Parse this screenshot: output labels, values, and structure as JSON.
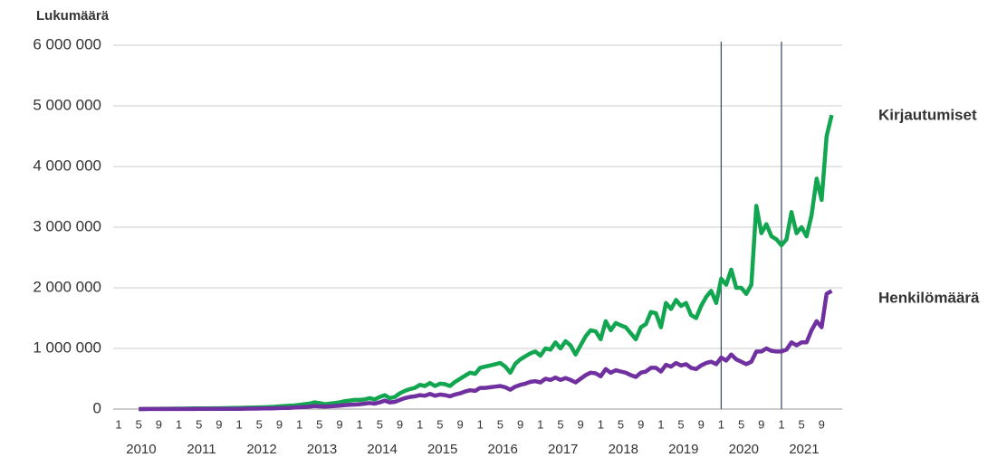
{
  "chart_data": {
    "type": "line",
    "y_axis_title": "Lukumäärä",
    "categories": [
      "1",
      null,
      null,
      null,
      "5",
      null,
      null,
      null,
      "9",
      null,
      null,
      null,
      "1",
      null,
      null,
      null,
      "5",
      null,
      null,
      null,
      "9",
      null,
      null,
      null,
      "1",
      null,
      null,
      null,
      "5",
      null,
      null,
      null,
      "9",
      null,
      null,
      null,
      "1",
      null,
      null,
      null,
      "5",
      null,
      null,
      null,
      "9",
      null,
      null,
      null,
      "1",
      null,
      null,
      null,
      "5",
      null,
      null,
      null,
      "9",
      null,
      null,
      null,
      "1",
      null,
      null,
      null,
      "5",
      null,
      null,
      null,
      "9",
      null,
      null,
      null,
      "1",
      null,
      null,
      null,
      "5",
      null,
      null,
      null,
      "9",
      null,
      null,
      null,
      "1",
      null,
      null,
      null,
      "5",
      null,
      null,
      null,
      "9",
      null,
      null,
      null,
      "1",
      null,
      null,
      null,
      "5",
      null,
      null,
      null,
      "9",
      null,
      null,
      null,
      "1",
      null,
      null,
      null,
      "5",
      null,
      null,
      null,
      "9",
      null,
      null,
      null,
      "1",
      null,
      null,
      null,
      "5",
      null,
      null,
      null,
      "9",
      null,
      null,
      null,
      "1",
      null,
      null,
      null,
      "5",
      null,
      null,
      null,
      "9",
      null,
      null,
      null
    ],
    "years": [
      "2010",
      "2011",
      "2012",
      "2013",
      "2014",
      "2015",
      "2016",
      "2017",
      "2018",
      "2019",
      "2020",
      "2021"
    ],
    "vlines": [
      120,
      132
    ],
    "ylim": [
      0,
      6000000
    ],
    "yticks": [
      0,
      {
        "value": 1000000,
        "label": "1 000 000"
      },
      {
        "value": 2000000,
        "label": "2 000 000"
      },
      {
        "value": 3000000,
        "label": "3 000 000"
      },
      {
        "value": 4000000,
        "label": "4 000 000"
      },
      {
        "value": 5000000,
        "label": "5 000 000"
      },
      {
        "value": 6000000,
        "label": "6 000 000"
      }
    ],
    "grid": true,
    "series": [
      {
        "name": "Kirjautumiset",
        "color": "#12a650",
        "values": [
          null,
          null,
          null,
          null,
          0,
          2000,
          3000,
          4000,
          5000,
          6000,
          6000,
          7000,
          8000,
          8000,
          9000,
          10000,
          10000,
          11000,
          12000,
          13000,
          14000,
          15000,
          16000,
          18000,
          20000,
          22000,
          24000,
          26000,
          28000,
          30000,
          33000,
          38000,
          45000,
          50000,
          55000,
          60000,
          70000,
          80000,
          90000,
          110000,
          100000,
          80000,
          90000,
          100000,
          110000,
          130000,
          140000,
          150000,
          150000,
          160000,
          180000,
          160000,
          200000,
          230000,
          180000,
          200000,
          260000,
          300000,
          330000,
          350000,
          400000,
          380000,
          430000,
          380000,
          420000,
          410000,
          380000,
          450000,
          500000,
          550000,
          600000,
          580000,
          680000,
          700000,
          720000,
          740000,
          760000,
          700000,
          600000,
          750000,
          820000,
          870000,
          920000,
          950000,
          880000,
          1000000,
          980000,
          1100000,
          1000000,
          1120000,
          1050000,
          900000,
          1050000,
          1200000,
          1300000,
          1280000,
          1150000,
          1450000,
          1300000,
          1420000,
          1380000,
          1350000,
          1250000,
          1150000,
          1350000,
          1400000,
          1600000,
          1580000,
          1350000,
          1750000,
          1650000,
          1800000,
          1700000,
          1750000,
          1550000,
          1500000,
          1700000,
          1850000,
          1950000,
          1750000,
          2150000,
          2050000,
          2300000,
          2000000,
          2000000,
          1900000,
          2050000,
          3350000,
          2900000,
          3050000,
          2850000,
          2800000,
          2700000,
          2800000,
          3250000,
          2900000,
          3000000,
          2850000,
          3200000,
          3800000,
          3450000,
          4500000,
          4850000,
          null
        ]
      },
      {
        "name": "Henkilömäärä",
        "color": "#7030a0",
        "values": [
          null,
          null,
          null,
          null,
          0,
          0,
          1000,
          1000,
          1000,
          1000,
          1000,
          1000,
          2000,
          2000,
          2000,
          2000,
          3000,
          3000,
          3000,
          3000,
          3000,
          4000,
          4000,
          4000,
          5000,
          6000,
          7000,
          8000,
          9000,
          10000,
          12000,
          14000,
          16000,
          18000,
          20000,
          25000,
          30000,
          35000,
          40000,
          50000,
          45000,
          40000,
          45000,
          50000,
          55000,
          65000,
          70000,
          75000,
          80000,
          90000,
          100000,
          90000,
          110000,
          140000,
          110000,
          120000,
          150000,
          180000,
          200000,
          210000,
          230000,
          220000,
          250000,
          220000,
          240000,
          230000,
          210000,
          240000,
          260000,
          290000,
          310000,
          300000,
          350000,
          350000,
          360000,
          370000,
          380000,
          360000,
          320000,
          370000,
          400000,
          420000,
          450000,
          460000,
          440000,
          500000,
          480000,
          520000,
          480000,
          510000,
          480000,
          440000,
          500000,
          560000,
          600000,
          590000,
          540000,
          660000,
          600000,
          640000,
          620000,
          600000,
          560000,
          530000,
          600000,
          620000,
          680000,
          680000,
          620000,
          730000,
          700000,
          760000,
          720000,
          740000,
          680000,
          660000,
          720000,
          760000,
          780000,
          740000,
          850000,
          800000,
          900000,
          820000,
          780000,
          740000,
          780000,
          950000,
          950000,
          1000000,
          960000,
          950000,
          950000,
          980000,
          1100000,
          1050000,
          1100000,
          1100000,
          1300000,
          1450000,
          1350000,
          1900000,
          1950000,
          null
        ]
      }
    ]
  }
}
